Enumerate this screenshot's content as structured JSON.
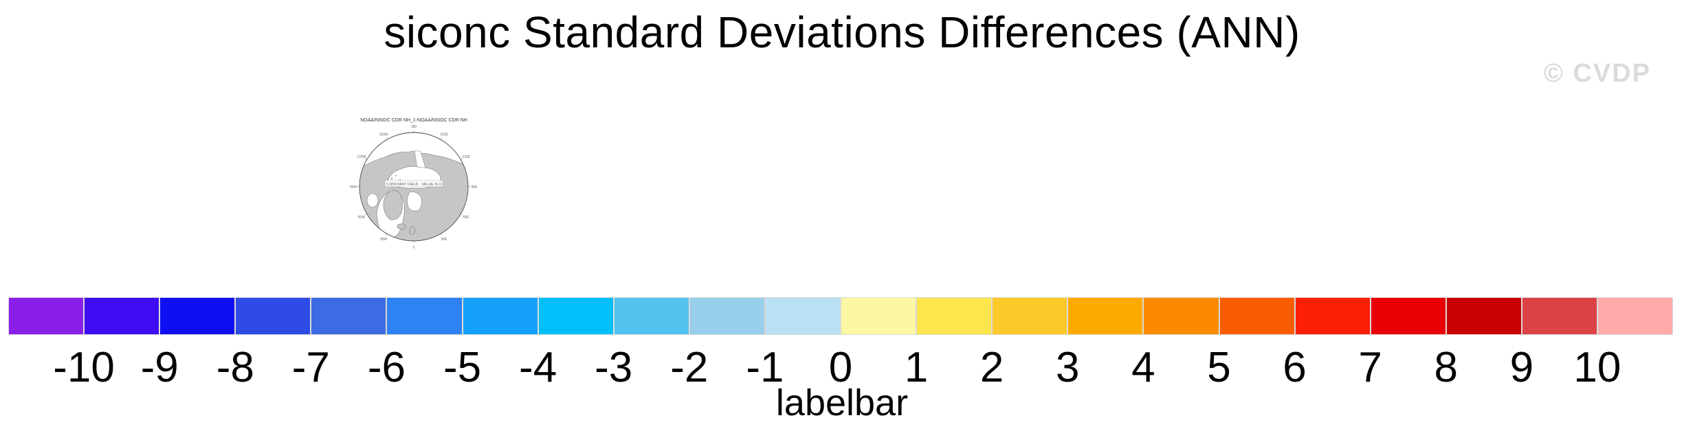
{
  "title": "siconc Standard Deviations Differences (ANN)",
  "watermark": "© CVDP",
  "map": {
    "title": "NOAA/NSIDC CDR NH_1-NOAA/NSIDC CDR NH",
    "center_message": "CONSTANT FIELD - VALUE IS 0",
    "ring_labels": [
      "180",
      "150E",
      "120E",
      "90E",
      "60E",
      "30E",
      "0",
      "30W",
      "60W",
      "90W",
      "120W",
      "150W"
    ]
  },
  "chart_data": {
    "type": "heatmap",
    "title": "siconc Standard Deviations Differences (ANN)",
    "panel_title": "NOAA/NSIDC CDR NH_1-NOAA/NSIDC CDR NH",
    "panel_note": "CONSTANT FIELD - VALUE IS 0",
    "projection": "north-polar-stereographic",
    "data_note": "difference field is constant, value 0 everywhere",
    "colorbar": {
      "label": "labelbar",
      "tick_values": [
        -10,
        -9,
        -8,
        -7,
        -6,
        -5,
        -4,
        -3,
        -2,
        -1,
        0,
        1,
        2,
        3,
        4,
        5,
        6,
        7,
        8,
        9,
        10
      ],
      "colors": [
        "#8A1FE9",
        "#3E0DF2",
        "#0F10F2",
        "#2F4BE5",
        "#3C6CE3",
        "#2E82F3",
        "#14A0FB",
        "#00BFFB",
        "#55C3F0",
        "#98CFEA",
        "#BAE0F4",
        "#FCF7A4",
        "#FDE54D",
        "#FCC92B",
        "#FBAB00",
        "#FB8A00",
        "#F95C00",
        "#FB1F05",
        "#E90005",
        "#C90105",
        "#DC4246",
        "#FFABAC"
      ]
    }
  },
  "colors": {
    "land": "#C6C6C6",
    "coast_outline": "#7A7A7A",
    "watermark_gray": "#DBDBDB"
  }
}
